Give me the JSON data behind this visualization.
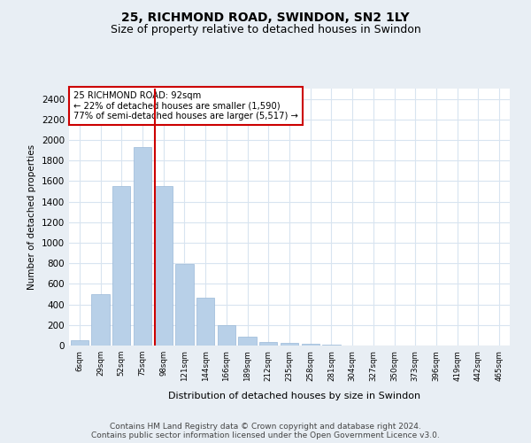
{
  "title": "25, RICHMOND ROAD, SWINDON, SN2 1LY",
  "subtitle": "Size of property relative to detached houses in Swindon",
  "xlabel": "Distribution of detached houses by size in Swindon",
  "ylabel": "Number of detached properties",
  "footer_line1": "Contains HM Land Registry data © Crown copyright and database right 2024.",
  "footer_line2": "Contains public sector information licensed under the Open Government Licence v3.0.",
  "bar_labels": [
    "6sqm",
    "29sqm",
    "52sqm",
    "75sqm",
    "98sqm",
    "121sqm",
    "144sqm",
    "166sqm",
    "189sqm",
    "212sqm",
    "235sqm",
    "258sqm",
    "281sqm",
    "304sqm",
    "327sqm",
    "350sqm",
    "373sqm",
    "396sqm",
    "419sqm",
    "442sqm",
    "465sqm"
  ],
  "bar_values": [
    50,
    500,
    1550,
    1930,
    1550,
    790,
    465,
    195,
    85,
    35,
    25,
    20,
    5,
    2,
    2,
    0,
    0,
    0,
    0,
    0,
    0
  ],
  "bar_color": "#b8d0e8",
  "bar_edgecolor": "#9ab8d8",
  "vline_color": "#cc0000",
  "annotation_text": "25 RICHMOND ROAD: 92sqm\n← 22% of detached houses are smaller (1,590)\n77% of semi-detached houses are larger (5,517) →",
  "annotation_box_color": "#cc0000",
  "ylim": [
    0,
    2500
  ],
  "yticks": [
    0,
    200,
    400,
    600,
    800,
    1000,
    1200,
    1400,
    1600,
    1800,
    2000,
    2200,
    2400
  ],
  "background_color": "#e8eef4",
  "plot_background": "#ffffff",
  "grid_color": "#d8e4f0",
  "title_fontsize": 10,
  "subtitle_fontsize": 9,
  "footer_fontsize": 6.5
}
